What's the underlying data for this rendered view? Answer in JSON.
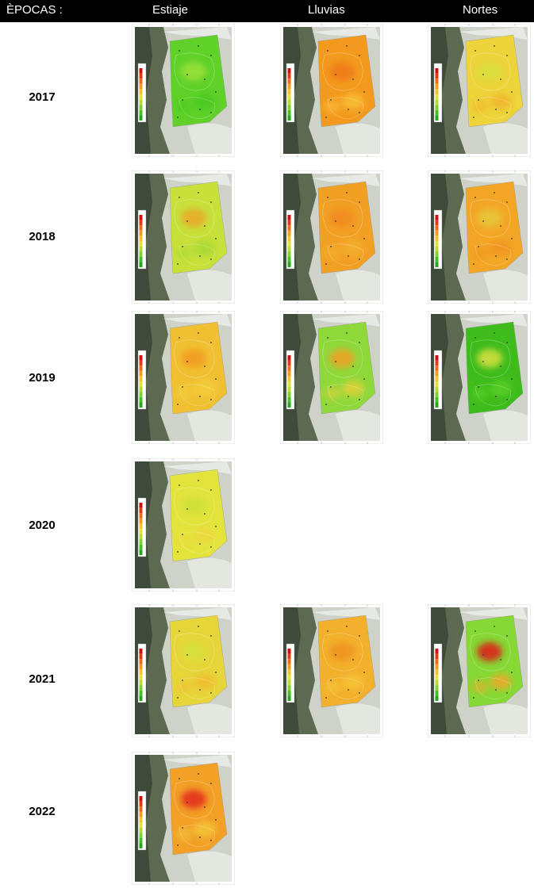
{
  "header": {
    "title": "ÈPOCAS :",
    "seasons": [
      "Estiaje",
      "Lluvias",
      "Nortes"
    ]
  },
  "years": [
    "2017",
    "2018",
    "2019",
    "2020",
    "2021",
    "2022"
  ],
  "grid": [
    {
      "year": "2017",
      "maps": [
        {
          "season": "Estiaje",
          "tone": "green-yellow",
          "base": "#5fd128",
          "spots": [
            "#9be03a",
            "#48c820"
          ]
        },
        {
          "season": "Lluvias",
          "tone": "orange",
          "base": "#f39a1e",
          "spots": [
            "#ee7a18",
            "#f9c23a"
          ]
        },
        {
          "season": "Nortes",
          "tone": "yellow",
          "base": "#ecd43a",
          "spots": [
            "#d8e040",
            "#f3b32a"
          ]
        }
      ]
    },
    {
      "year": "2018",
      "maps": [
        {
          "season": "Estiaje",
          "tone": "yellow-green",
          "base": "#c7e03a",
          "spots": [
            "#eaa828",
            "#a8d834"
          ]
        },
        {
          "season": "Lluvias",
          "tone": "orange",
          "base": "#f2a024",
          "spots": [
            "#f08a1c",
            "#f4b02c"
          ]
        },
        {
          "season": "Nortes",
          "tone": "orange",
          "base": "#f3a626",
          "spots": [
            "#e5c838",
            "#f09420"
          ]
        }
      ]
    },
    {
      "year": "2019",
      "maps": [
        {
          "season": "Estiaje",
          "tone": "yellow-orange",
          "base": "#f0c032",
          "spots": [
            "#f29a22",
            "#f4d040"
          ]
        },
        {
          "season": "Lluvias",
          "tone": "green",
          "base": "#8fd83a",
          "spots": [
            "#f3a026",
            "#e6d03a"
          ]
        },
        {
          "season": "Nortes",
          "tone": "dark-green",
          "base": "#3ebc1c",
          "spots": [
            "#d8e040",
            "#5ad028"
          ]
        }
      ]
    },
    {
      "year": "2020",
      "maps": [
        {
          "season": "Estiaje",
          "tone": "yellow",
          "base": "#e2e43c",
          "spots": [
            "#cfe03a",
            "#ecd83e"
          ]
        },
        null,
        null
      ]
    },
    {
      "year": "2021",
      "maps": [
        {
          "season": "Estiaje",
          "tone": "yellow",
          "base": "#e6d63a",
          "spots": [
            "#d6e23c",
            "#f0bc30"
          ]
        },
        {
          "season": "Lluvias",
          "tone": "orange",
          "base": "#f3b02c",
          "spots": [
            "#f09222",
            "#f6c43a"
          ]
        },
        {
          "season": "Nortes",
          "tone": "green",
          "base": "#86d834",
          "spots": [
            "#e01818",
            "#f3a626"
          ]
        }
      ]
    },
    {
      "year": "2022",
      "maps": [
        {
          "season": "Estiaje",
          "tone": "orange",
          "base": "#f2a026",
          "spots": [
            "#e42c1c",
            "#f4c83a"
          ]
        },
        null,
        null
      ]
    }
  ]
}
